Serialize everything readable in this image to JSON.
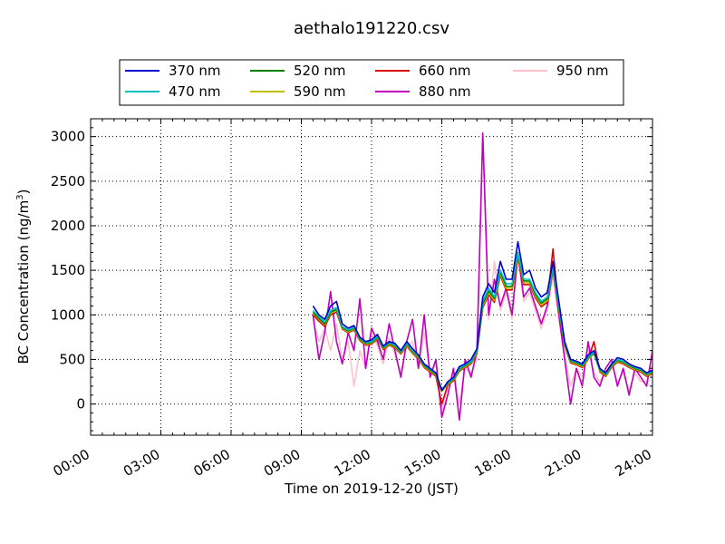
{
  "chart_data": {
    "type": "line",
    "title": "aethalo191220.csv",
    "xlabel": "Time on 2019-12-20 (JST)",
    "ylabel_main": "BC Concentration (ng/m",
    "ylabel_sup": "3",
    "ylabel_close": ")",
    "x_unit": "hours",
    "xlim": [
      0,
      24
    ],
    "ylim": [
      -350,
      3200
    ],
    "x_ticks": [
      {
        "value": 0,
        "label": "00:00"
      },
      {
        "value": 3,
        "label": "03:00"
      },
      {
        "value": 6,
        "label": "06:00"
      },
      {
        "value": 9,
        "label": "09:00"
      },
      {
        "value": 12,
        "label": "12:00"
      },
      {
        "value": 15,
        "label": "15:00"
      },
      {
        "value": 18,
        "label": "18:00"
      },
      {
        "value": 21,
        "label": "21:00"
      },
      {
        "value": 24,
        "label": "24:00"
      }
    ],
    "y_ticks": [
      {
        "value": 0,
        "label": "0"
      },
      {
        "value": 500,
        "label": "500"
      },
      {
        "value": 1000,
        "label": "1000"
      },
      {
        "value": 1500,
        "label": "1500"
      },
      {
        "value": 2000,
        "label": "2000"
      },
      {
        "value": 2500,
        "label": "2500"
      },
      {
        "value": 3000,
        "label": "3000"
      }
    ],
    "grid": true,
    "legend_position": "top",
    "x": [
      9.5,
      9.75,
      10.0,
      10.25,
      10.5,
      10.75,
      11.0,
      11.25,
      11.5,
      11.75,
      12.0,
      12.25,
      12.5,
      12.75,
      13.0,
      13.25,
      13.5,
      13.75,
      14.0,
      14.25,
      14.5,
      14.75,
      15.0,
      15.25,
      15.5,
      15.75,
      16.0,
      16.25,
      16.5,
      16.75,
      17.0,
      17.25,
      17.5,
      17.75,
      18.0,
      18.25,
      18.5,
      18.75,
      19.0,
      19.25,
      19.5,
      19.75,
      20.0,
      20.25,
      20.5,
      20.75,
      21.0,
      21.25,
      21.5,
      21.75,
      22.0,
      22.25,
      22.5,
      22.75,
      23.0,
      23.25,
      23.5,
      23.75,
      24.0
    ],
    "series": [
      {
        "name": "370 nm",
        "color": "#0000cc",
        "values": [
          1100,
          1000,
          950,
          1100,
          1150,
          900,
          850,
          880,
          750,
          700,
          720,
          780,
          650,
          700,
          680,
          600,
          700,
          620,
          550,
          450,
          400,
          350,
          150,
          250,
          300,
          420,
          450,
          500,
          620,
          1200,
          1350,
          1250,
          1600,
          1400,
          1400,
          1820,
          1450,
          1500,
          1300,
          1200,
          1250,
          1600,
          1150,
          700,
          500,
          480,
          450,
          550,
          600,
          400,
          350,
          450,
          520,
          500,
          450,
          420,
          400,
          350,
          380
        ]
      },
      {
        "name": "470 nm",
        "color": "#00bfbf",
        "values": [
          1050,
          980,
          920,
          1050,
          1080,
          870,
          830,
          860,
          740,
          690,
          700,
          760,
          640,
          690,
          660,
          590,
          680,
          600,
          540,
          440,
          390,
          340,
          160,
          240,
          290,
          400,
          440,
          480,
          600,
          1150,
          1300,
          1200,
          1500,
          1350,
          1350,
          1700,
          1400,
          1400,
          1250,
          1150,
          1200,
          1550,
          1100,
          680,
          490,
          470,
          440,
          530,
          580,
          390,
          340,
          440,
          500,
          480,
          440,
          410,
          390,
          340,
          370
        ]
      },
      {
        "name": "520 nm",
        "color": "#008000",
        "values": [
          1030,
          960,
          900,
          1030,
          1060,
          860,
          820,
          850,
          730,
          680,
          690,
          750,
          630,
          680,
          650,
          580,
          670,
          590,
          530,
          430,
          380,
          330,
          150,
          230,
          280,
          390,
          430,
          470,
          590,
          1120,
          1270,
          1180,
          1480,
          1320,
          1320,
          1680,
          1380,
          1380,
          1230,
          1130,
          1180,
          1530,
          1080,
          670,
          480,
          460,
          430,
          520,
          570,
          380,
          330,
          430,
          490,
          470,
          430,
          400,
          380,
          330,
          360
        ]
      },
      {
        "name": "590 nm",
        "color": "#bfbf00",
        "values": [
          1020,
          950,
          890,
          1020,
          1050,
          850,
          810,
          840,
          720,
          670,
          680,
          740,
          620,
          670,
          640,
          570,
          660,
          580,
          520,
          420,
          370,
          320,
          140,
          220,
          270,
          380,
          420,
          460,
          580,
          1100,
          1250,
          1160,
          1460,
          1300,
          1300,
          1660,
          1360,
          1360,
          1210,
          1110,
          1160,
          1510,
          1060,
          660,
          470,
          450,
          420,
          510,
          560,
          370,
          320,
          420,
          480,
          460,
          420,
          390,
          370,
          320,
          350
        ]
      },
      {
        "name": "660 nm",
        "color": "#dd0000",
        "values": [
          1000,
          930,
          870,
          1000,
          1030,
          840,
          800,
          830,
          710,
          660,
          670,
          730,
          610,
          660,
          630,
          560,
          650,
          570,
          510,
          410,
          360,
          310,
          0,
          210,
          260,
          370,
          410,
          450,
          570,
          1080,
          1230,
          1140,
          1440,
          1280,
          1280,
          1640,
          1340,
          1340,
          1190,
          1090,
          1140,
          1740,
          1040,
          650,
          460,
          440,
          410,
          500,
          700,
          360,
          310,
          410,
          470,
          450,
          410,
          380,
          360,
          310,
          340
        ]
      },
      {
        "name": "880 nm",
        "color": "#bf00bf",
        "values": [
          1000,
          500,
          800,
          1260,
          700,
          450,
          800,
          600,
          1180,
          400,
          850,
          700,
          500,
          900,
          600,
          300,
          700,
          950,
          400,
          1000,
          300,
          500,
          -150,
          100,
          400,
          -180,
          500,
          300,
          600,
          3040,
          1000,
          1400,
          1100,
          1300,
          1000,
          1700,
          1200,
          1300,
          1100,
          900,
          1100,
          1500,
          1000,
          500,
          0,
          400,
          200,
          700,
          300,
          200,
          400,
          500,
          200,
          400,
          100,
          400,
          300,
          200,
          600
        ]
      },
      {
        "name": "950 nm",
        "color": "#ffc0cb",
        "values": [
          950,
          700,
          850,
          600,
          900,
          500,
          700,
          200,
          600,
          400,
          800,
          650,
          450,
          750,
          550,
          350,
          650,
          700,
          400,
          800,
          350,
          450,
          -80,
          200,
          350,
          0,
          400,
          350,
          500,
          3020,
          950,
          1600,
          1050,
          1250,
          950,
          1650,
          1150,
          1250,
          1050,
          850,
          1050,
          1450,
          950,
          550,
          200,
          400,
          300,
          600,
          350,
          250,
          350,
          450,
          250,
          350,
          150,
          350,
          250,
          250,
          450
        ]
      }
    ]
  }
}
